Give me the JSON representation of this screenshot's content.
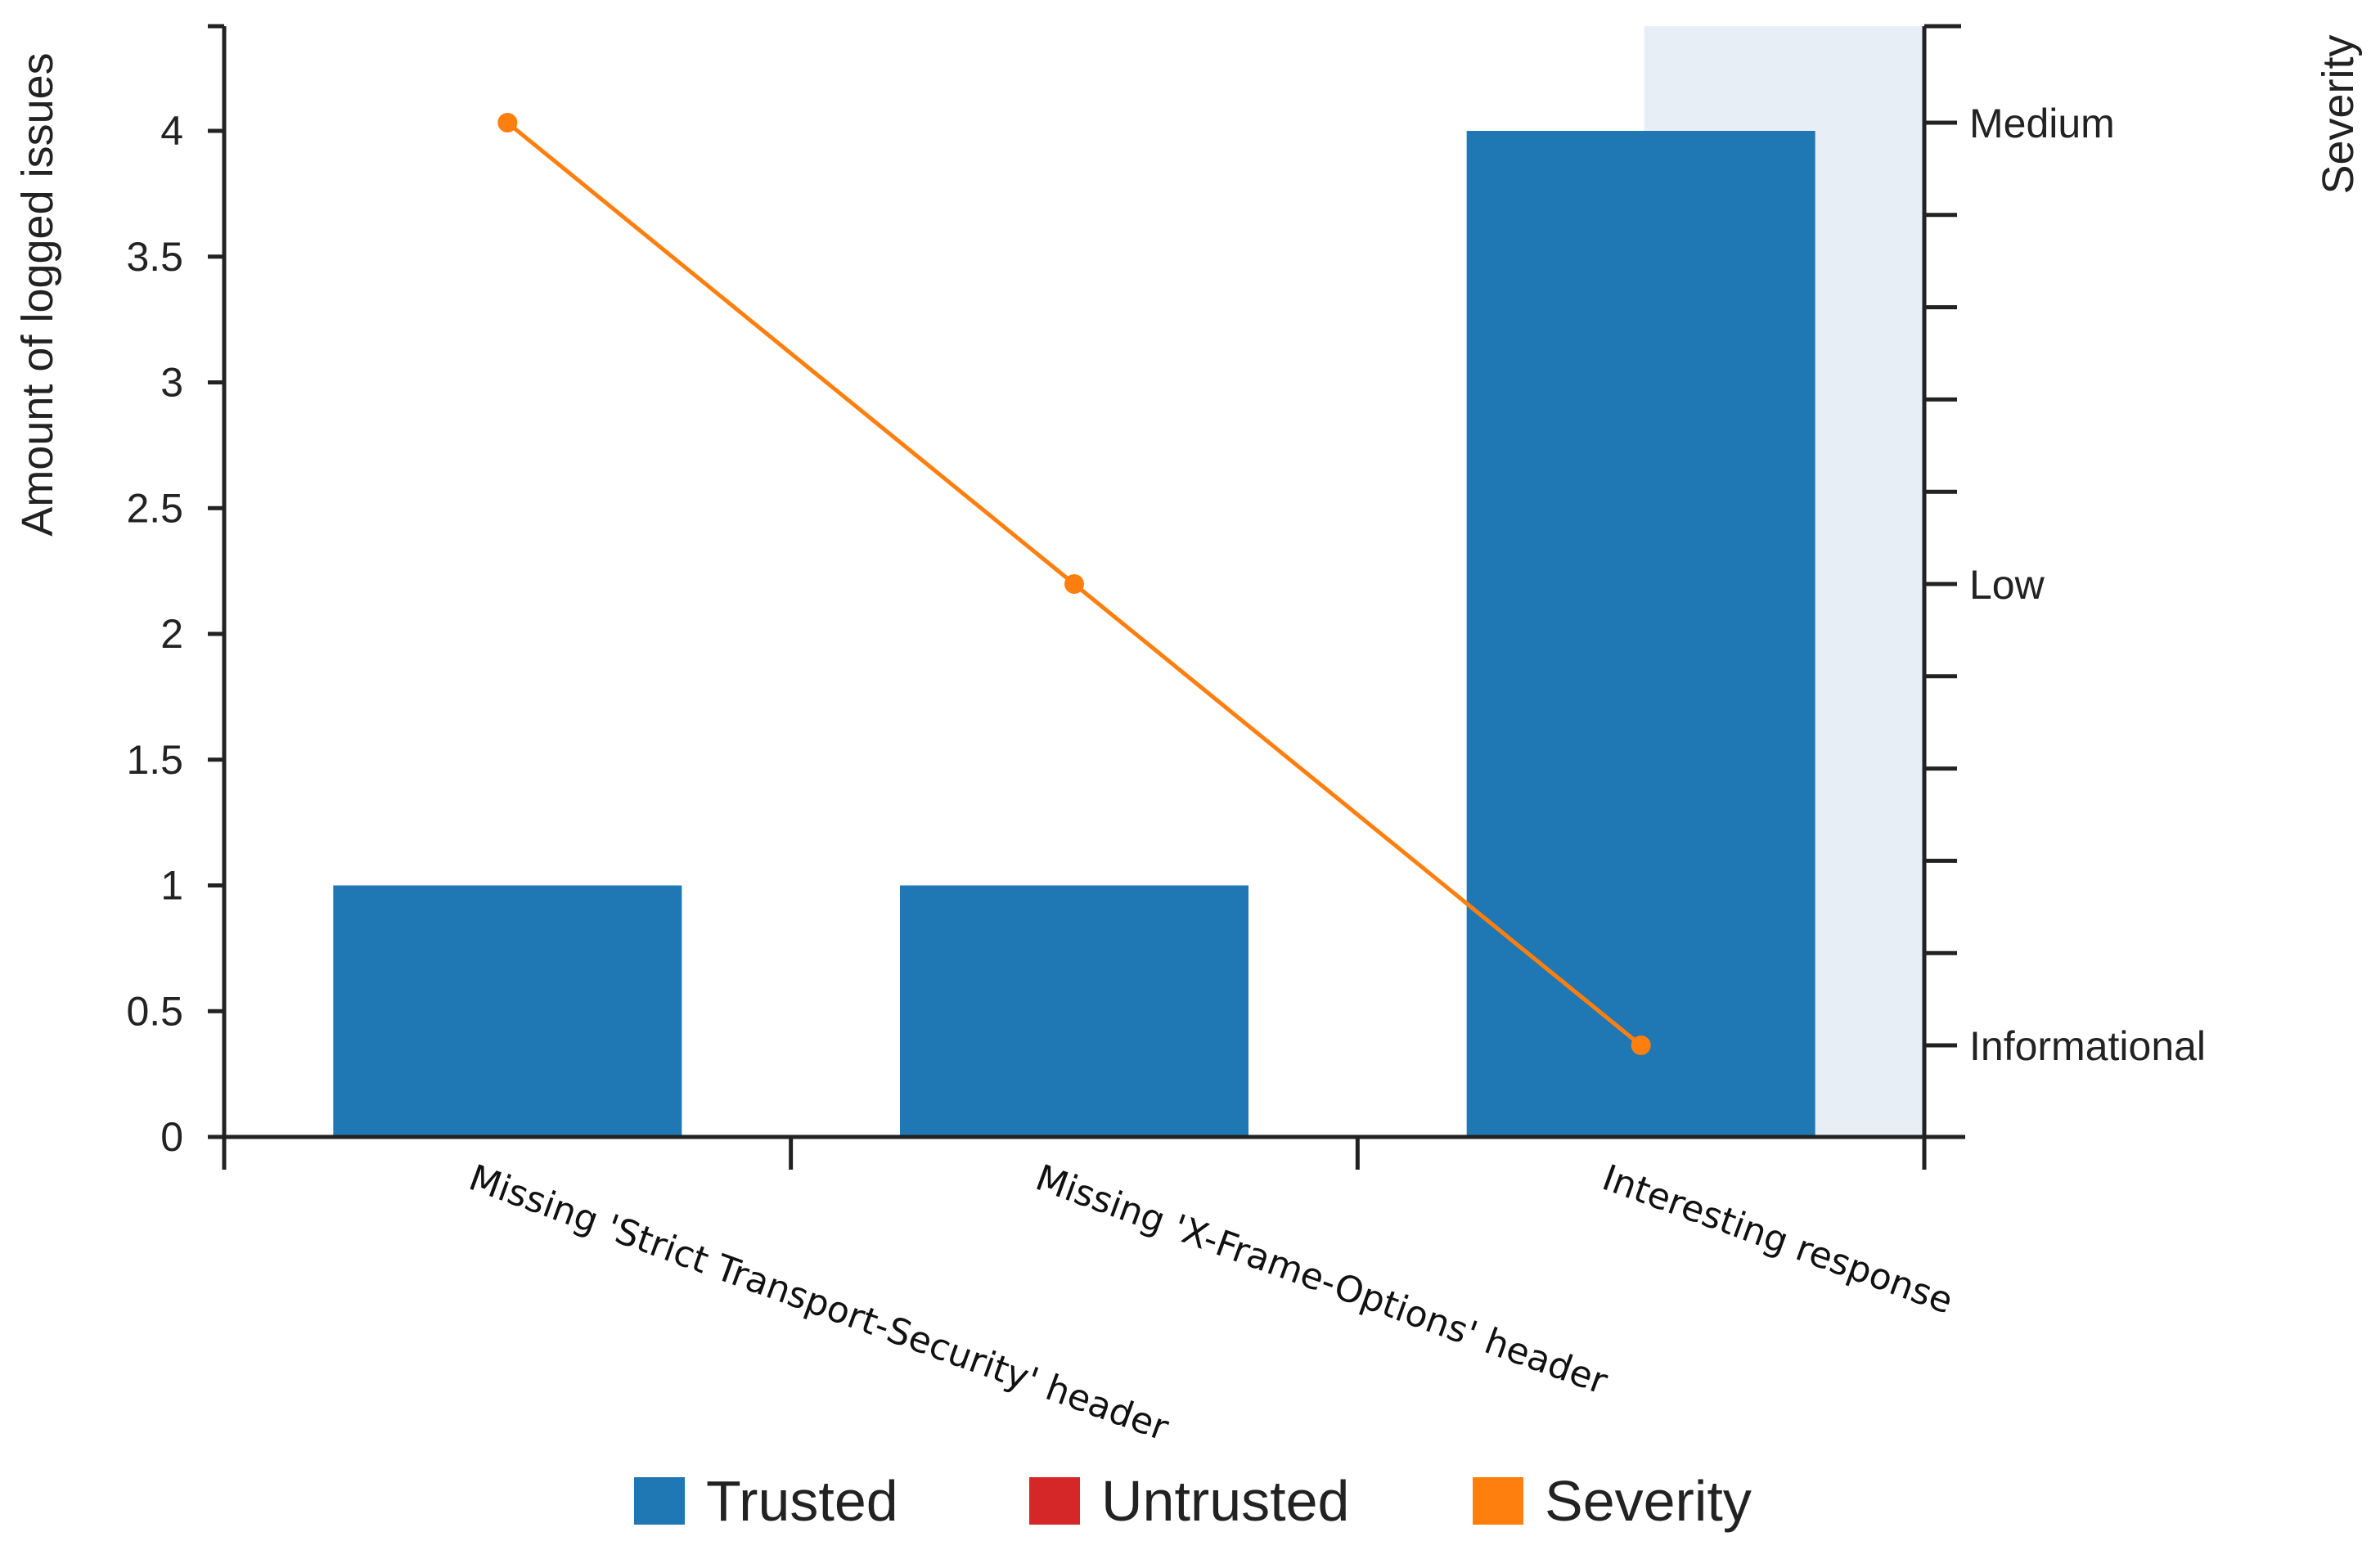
{
  "chart_data": {
    "type": "bar",
    "categories": [
      "Missing 'Strict Transport-Security' header",
      "Missing 'X-Frame-Options' header",
      "Interesting response"
    ],
    "series": [
      {
        "name": "Trusted",
        "values": [
          1,
          1,
          4
        ],
        "color": "#1f77b4",
        "kind": "bar"
      },
      {
        "name": "Untrusted",
        "values": [
          0,
          0,
          0
        ],
        "color": "#d62728",
        "kind": "bar"
      },
      {
        "name": "Severity",
        "values": [
          "Medium",
          "Low",
          "Informational"
        ],
        "color": "#ff7f0e",
        "kind": "line"
      }
    ],
    "ylabel": "Amount of logged issues",
    "ylim": [
      0,
      4.4
    ],
    "yticks": [
      "0",
      "0.5",
      "1",
      "1.5",
      "2",
      "2.5",
      "3",
      "3.5",
      "4"
    ],
    "y2label": "Severity",
    "y2_levels": [
      "Informational",
      "Low",
      "Medium"
    ],
    "highlighted_category": "Interesting response",
    "highlight_color": "#e8eef6",
    "legend": [
      "Trusted",
      "Untrusted",
      "Severity"
    ],
    "legend_position": "bottom",
    "grid": false
  }
}
